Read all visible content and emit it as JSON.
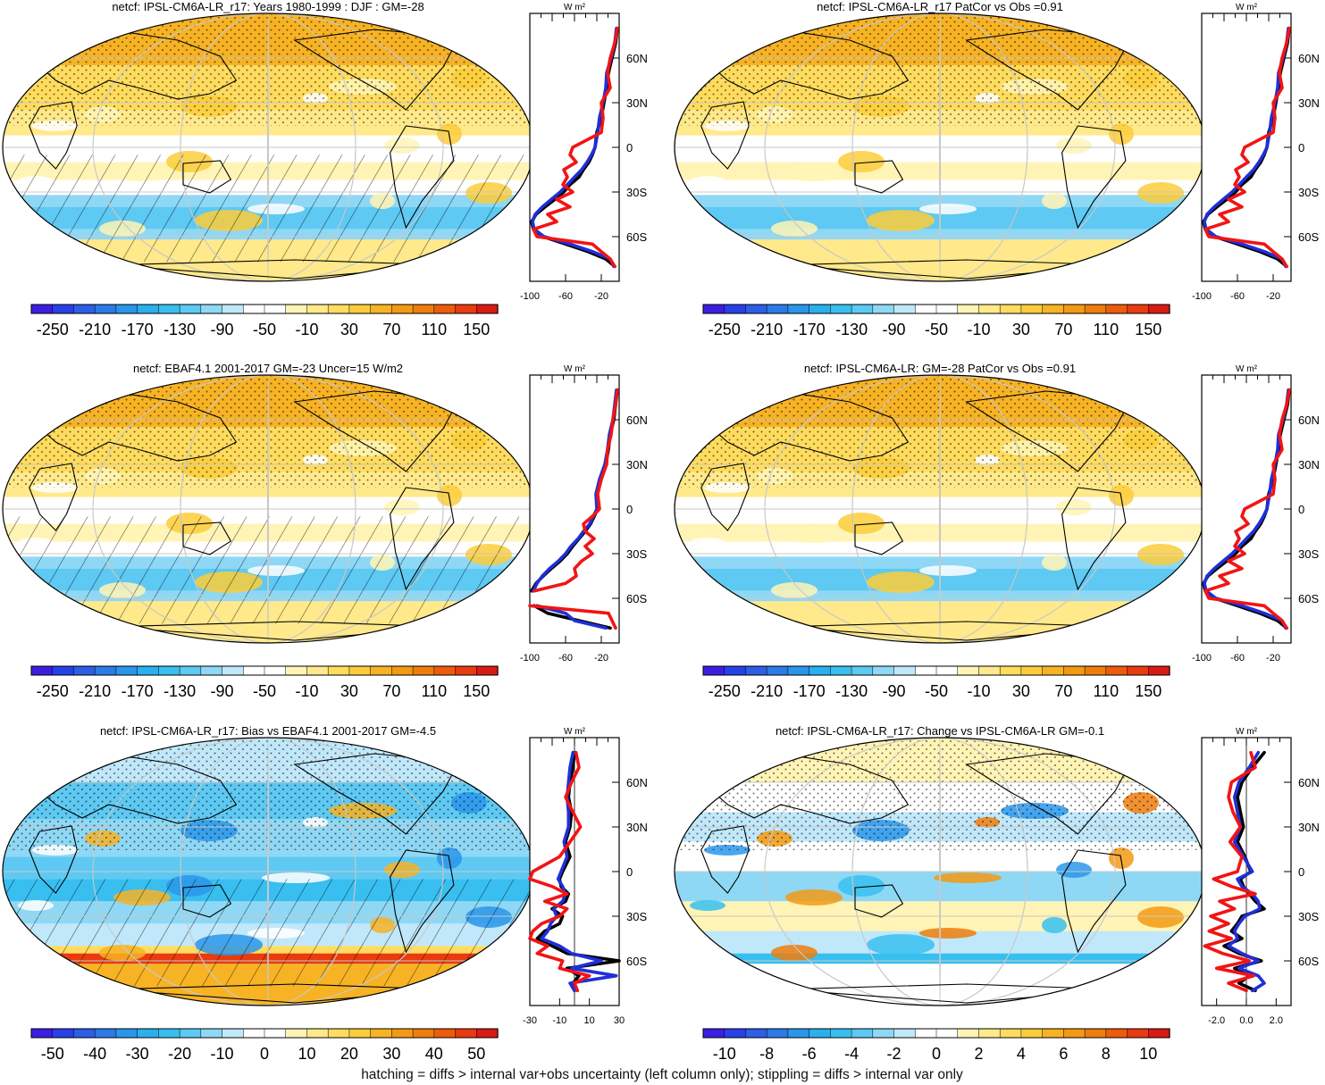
{
  "footer": "hatching = diffs > internal var+obs uncertainty (left column only); stippling = diffs > internal var only",
  "chart_data": [
    {
      "type": "heatmap",
      "panel": "top-left",
      "title": "netcf: IPSL-CM6A-LR_r17: Years 1980-1999 : DJF : GM=-28",
      "colorbar": {
        "ticks": [
          "-250",
          "-210",
          "-170",
          "-130",
          "-90",
          "-50",
          "-10",
          "30",
          "70",
          "110",
          "150"
        ],
        "palette": "main"
      },
      "zonal_mean": {
        "unit_label": "W m²",
        "xlim": [
          -100,
          0
        ],
        "xticks": [
          "-100",
          "-60",
          "-20"
        ],
        "ylim": [
          -90,
          90
        ],
        "yticks": [
          "60N",
          "30N",
          "0",
          "30S",
          "60S"
        ],
        "lat": [
          80,
          70,
          60,
          50,
          40,
          30,
          20,
          10,
          0,
          -5,
          -10,
          -15,
          -20,
          -25,
          -30,
          -35,
          -40,
          -45,
          -50,
          -55,
          -60,
          -65,
          -70,
          -75,
          -80
        ],
        "series": [
          {
            "color": "#000000",
            "values": [
              -2,
              -4,
              -8,
              -12,
              -14,
              -17,
              -20,
              -25,
              -27,
              -30,
              -34,
              -40,
              -45,
              -55,
              -62,
              -72,
              -83,
              -93,
              -98,
              -96,
              -85,
              -60,
              -35,
              -15,
              -5
            ]
          },
          {
            "color": "#1f2fd8",
            "values": [
              -3,
              -5,
              -9,
              -14,
              -15,
              -18,
              -22,
              -24,
              -27,
              -31,
              -36,
              -42,
              -50,
              -58,
              -66,
              -76,
              -86,
              -94,
              -97,
              -95,
              -84,
              -55,
              -30,
              -10,
              -6
            ]
          },
          {
            "color": "#f21414",
            "values": [
              -2,
              -5,
              -10,
              -13,
              -10,
              -20,
              -18,
              -20,
              -52,
              -55,
              -48,
              -62,
              -58,
              -63,
              -52,
              -70,
              -55,
              -80,
              -70,
              -96,
              -92,
              -30,
              -20,
              -10,
              -5
            ]
          }
        ]
      }
    },
    {
      "type": "heatmap",
      "panel": "top-right",
      "title": "netcf: IPSL-CM6A-LR_r17 PatCor vs Obs =0.91",
      "colorbar": {
        "ticks": [
          "-250",
          "-210",
          "-170",
          "-130",
          "-90",
          "-50",
          "-10",
          "30",
          "70",
          "110",
          "150"
        ],
        "palette": "main"
      },
      "zonal_mean": {
        "unit_label": "W m²",
        "xlim": [
          -100,
          0
        ],
        "xticks": [
          "-100",
          "-60",
          "-20"
        ],
        "ylim": [
          -90,
          90
        ],
        "yticks": [
          "60N",
          "30N",
          "0",
          "30S",
          "60S"
        ],
        "lat": [
          80,
          70,
          60,
          50,
          40,
          30,
          20,
          10,
          0,
          -5,
          -10,
          -15,
          -20,
          -25,
          -30,
          -35,
          -40,
          -45,
          -50,
          -55,
          -60,
          -65,
          -70,
          -75,
          -80
        ],
        "series": [
          {
            "color": "#000000",
            "values": [
              -2,
              -4,
              -8,
              -12,
              -14,
              -17,
              -20,
              -25,
              -27,
              -30,
              -34,
              -40,
              -45,
              -55,
              -62,
              -72,
              -83,
              -93,
              -98,
              -96,
              -85,
              -60,
              -35,
              -15,
              -5
            ]
          },
          {
            "color": "#1f2fd8",
            "values": [
              -3,
              -5,
              -9,
              -14,
              -15,
              -18,
              -22,
              -24,
              -27,
              -31,
              -36,
              -42,
              -50,
              -58,
              -66,
              -76,
              -86,
              -94,
              -97,
              -95,
              -84,
              -55,
              -30,
              -10,
              -6
            ]
          },
          {
            "color": "#f21414",
            "values": [
              -2,
              -5,
              -10,
              -13,
              -10,
              -20,
              -18,
              -20,
              -52,
              -55,
              -48,
              -62,
              -58,
              -63,
              -52,
              -70,
              -55,
              -80,
              -70,
              -96,
              -92,
              -30,
              -20,
              -10,
              -5
            ]
          }
        ]
      }
    },
    {
      "type": "heatmap",
      "panel": "middle-left",
      "title": "netcf: EBAF4.1 2001-2017 GM=-23 Uncer=15 W/m2",
      "colorbar": {
        "ticks": [
          "-250",
          "-210",
          "-170",
          "-130",
          "-90",
          "-50",
          "-10",
          "30",
          "70",
          "110",
          "150"
        ],
        "palette": "main"
      },
      "zonal_mean": {
        "unit_label": "W m²",
        "xlim": [
          -100,
          0
        ],
        "xticks": [
          "-100",
          "-60",
          "-20"
        ],
        "ylim": [
          -90,
          90
        ],
        "yticks": [
          "60N",
          "30N",
          "0",
          "30S",
          "60S"
        ],
        "lat": [
          80,
          70,
          60,
          50,
          40,
          30,
          20,
          10,
          0,
          -5,
          -10,
          -15,
          -20,
          -25,
          -30,
          -35,
          -40,
          -45,
          -50,
          -55,
          -60,
          -65,
          -70,
          -75,
          -80
        ],
        "series": [
          {
            "color": "#000000",
            "values": [
              -2,
              -4,
              -6,
              -10,
              -12,
              -15,
              -20,
              -25,
              -24,
              -28,
              -32,
              -38,
              -45,
              -52,
              -58,
              -66,
              -76,
              -85,
              -93,
              -98,
              null,
              -95,
              -80,
              -45,
              -10
            ]
          },
          {
            "color": "#1f2fd8",
            "values": [
              -3,
              -5,
              -7,
              -11,
              -13,
              -16,
              -22,
              -26,
              -25,
              -29,
              -33,
              -40,
              -46,
              -54,
              -60,
              -68,
              -78,
              -86,
              -92,
              -96,
              null,
              -92,
              -60,
              -50,
              -15
            ]
          },
          {
            "color": "#f21414",
            "values": [
              -2,
              -4,
              -7,
              -9,
              -13,
              -14,
              -20,
              -24,
              -22,
              -30,
              -40,
              -38,
              -28,
              -38,
              -30,
              -42,
              -50,
              -48,
              -60,
              -95,
              null,
              -100,
              -12,
              -8,
              -4
            ]
          }
        ]
      }
    },
    {
      "type": "heatmap",
      "panel": "middle-right",
      "title": "netcf: IPSL-CM6A-LR: GM=-28 PatCor vs Obs =0.91",
      "colorbar": {
        "ticks": [
          "-250",
          "-210",
          "-170",
          "-130",
          "-90",
          "-50",
          "-10",
          "30",
          "70",
          "110",
          "150"
        ],
        "palette": "main"
      },
      "zonal_mean": {
        "unit_label": "W m²",
        "xlim": [
          -100,
          0
        ],
        "xticks": [
          "-100",
          "-60",
          "-20"
        ],
        "ylim": [
          -90,
          90
        ],
        "yticks": [
          "60N",
          "30N",
          "0",
          "30S",
          "60S"
        ],
        "lat": [
          80,
          70,
          60,
          50,
          40,
          30,
          20,
          10,
          0,
          -5,
          -10,
          -15,
          -20,
          -25,
          -30,
          -35,
          -40,
          -45,
          -50,
          -55,
          -60,
          -65,
          -70,
          -75,
          -80
        ],
        "series": [
          {
            "color": "#000000",
            "values": [
              -2,
              -4,
              -8,
              -12,
              -14,
              -17,
              -20,
              -25,
              -27,
              -30,
              -34,
              -40,
              -45,
              -55,
              -62,
              -72,
              -83,
              -93,
              -98,
              -96,
              -85,
              -60,
              -35,
              -15,
              -5
            ]
          },
          {
            "color": "#1f2fd8",
            "values": [
              -3,
              -5,
              -9,
              -14,
              -15,
              -18,
              -22,
              -24,
              -27,
              -31,
              -36,
              -42,
              -50,
              -58,
              -66,
              -76,
              -86,
              -94,
              -97,
              -95,
              -84,
              -55,
              -30,
              -10,
              -6
            ]
          },
          {
            "color": "#f21414",
            "values": [
              -2,
              -5,
              -10,
              -13,
              -10,
              -20,
              -18,
              -20,
              -52,
              -55,
              -48,
              -62,
              -58,
              -63,
              -52,
              -70,
              -55,
              -80,
              -70,
              -96,
              -92,
              -30,
              -20,
              -10,
              -5
            ]
          }
        ]
      }
    },
    {
      "type": "heatmap",
      "panel": "bottom-left",
      "title": "netcf: IPSL-CM6A-LR_r17: Bias vs EBAF4.1 2001-2017 GM=-4.5",
      "colorbar": {
        "ticks": [
          "-50",
          "-40",
          "-30",
          "-20",
          "-10",
          "0",
          "10",
          "20",
          "30",
          "40",
          "50"
        ],
        "palette": "main"
      },
      "zonal_mean": {
        "unit_label": "W m²",
        "xlim": [
          -30,
          30
        ],
        "xticks": [
          "-30",
          "-10",
          "10",
          "30"
        ],
        "ylim": [
          -90,
          90
        ],
        "yticks": [
          "60N",
          "30N",
          "0",
          "30S",
          "60S"
        ],
        "lat": [
          80,
          70,
          60,
          50,
          40,
          30,
          20,
          10,
          0,
          -5,
          -10,
          -15,
          -20,
          -25,
          -30,
          -35,
          -40,
          -45,
          -50,
          -55,
          -60,
          -65,
          -70,
          -75,
          -80
        ],
        "series": [
          {
            "color": "#000000",
            "values": [
              0,
              -1,
              -3,
              -4,
              -2,
              -3,
              -6,
              -3,
              -8,
              -10,
              -9,
              -4,
              -6,
              -15,
              -8,
              -10,
              -20,
              -25,
              -15,
              -5,
              30,
              -5,
              3,
              -1,
              0
            ]
          },
          {
            "color": "#1f2fd8",
            "values": [
              -1,
              -3,
              -4,
              -5,
              -4,
              -4,
              -7,
              -5,
              -9,
              -11,
              -8,
              -6,
              -8,
              -14,
              -12,
              -16,
              -18,
              -22,
              -10,
              -2,
              18,
              -2,
              28,
              -3,
              0
            ]
          },
          {
            "color": "#f21414",
            "values": [
              1,
              3,
              -2,
              -6,
              -1,
              4,
              -3,
              -10,
              -28,
              -30,
              -15,
              -5,
              -20,
              -5,
              -10,
              -22,
              -28,
              -30,
              -18,
              -25,
              -8,
              -10,
              10,
              0,
              2
            ]
          }
        ]
      }
    },
    {
      "type": "heatmap",
      "panel": "bottom-right",
      "title": "netcf: IPSL-CM6A-LR_r17: Change vs IPSL-CM6A-LR GM=-0.1",
      "colorbar": {
        "ticks": [
          "-10",
          "-8",
          "-6",
          "-4",
          "-2",
          "0",
          "2",
          "4",
          "6",
          "8",
          "10"
        ],
        "palette": "main"
      },
      "zonal_mean": {
        "unit_label": "W m²",
        "xlim": [
          -3,
          3
        ],
        "xticks": [
          "-2.0",
          "0.0",
          "2.0"
        ],
        "ylim": [
          -90,
          90
        ],
        "yticks": [
          "60N",
          "30N",
          "0",
          "30S",
          "60S"
        ],
        "lat": [
          80,
          70,
          60,
          50,
          40,
          30,
          20,
          10,
          0,
          -5,
          -10,
          -15,
          -20,
          -25,
          -30,
          -35,
          -40,
          -45,
          -50,
          -55,
          -60,
          -65,
          -70,
          -75,
          -80
        ],
        "series": [
          {
            "color": "#000000",
            "values": [
              1.2,
              0.4,
              -0.3,
              -0.6,
              -0.4,
              -0.2,
              -0.6,
              -0.1,
              0.3,
              -0.4,
              -0.2,
              0.2,
              0.6,
              1.2,
              -0.3,
              -0.6,
              -1.0,
              -0.3,
              -1.5,
              -0.5,
              1.0,
              -0.8,
              0.2,
              -0.5,
              0.6
            ]
          },
          {
            "color": "#1f2fd8",
            "values": [
              0.8,
              0.2,
              -0.5,
              -0.8,
              -0.6,
              -0.4,
              -0.8,
              -0.2,
              0.4,
              -0.6,
              -0.3,
              0.4,
              0.8,
              0.9,
              -0.1,
              -0.5,
              -0.8,
              -0.6,
              -1.2,
              -0.3,
              0.8,
              -0.5,
              0.8,
              1.2,
              0.4
            ]
          },
          {
            "color": "#f21414",
            "values": [
              0.3,
              0.6,
              -1.0,
              -1.2,
              -0.9,
              -0.4,
              -1.1,
              -0.3,
              -0.6,
              -2.2,
              -1.0,
              0.6,
              -1.8,
              -0.8,
              -2.4,
              -1.2,
              -2.5,
              -1.0,
              -2.8,
              -1.6,
              0.2,
              -2.0,
              0.5,
              -1.2,
              0.0
            ]
          }
        ]
      }
    }
  ],
  "colors": {
    "palette": [
      "#3b1fe0",
      "#2740e8",
      "#2d5ee6",
      "#2c7ae8",
      "#2a96ea",
      "#2ab0ee",
      "#38bff0",
      "#5ec9f2",
      "#8ed8f5",
      "#c0e8fa",
      "#ffffff",
      "#ffffff",
      "#fff4b5",
      "#ffe98a",
      "#ffdc5e",
      "#fccc3a",
      "#f7b324",
      "#f39a13",
      "#ef7d0d",
      "#ec5c0c",
      "#e83b0f",
      "#d81a14"
    ],
    "land_outline": "#000000",
    "grid": "#c8c8c8"
  }
}
